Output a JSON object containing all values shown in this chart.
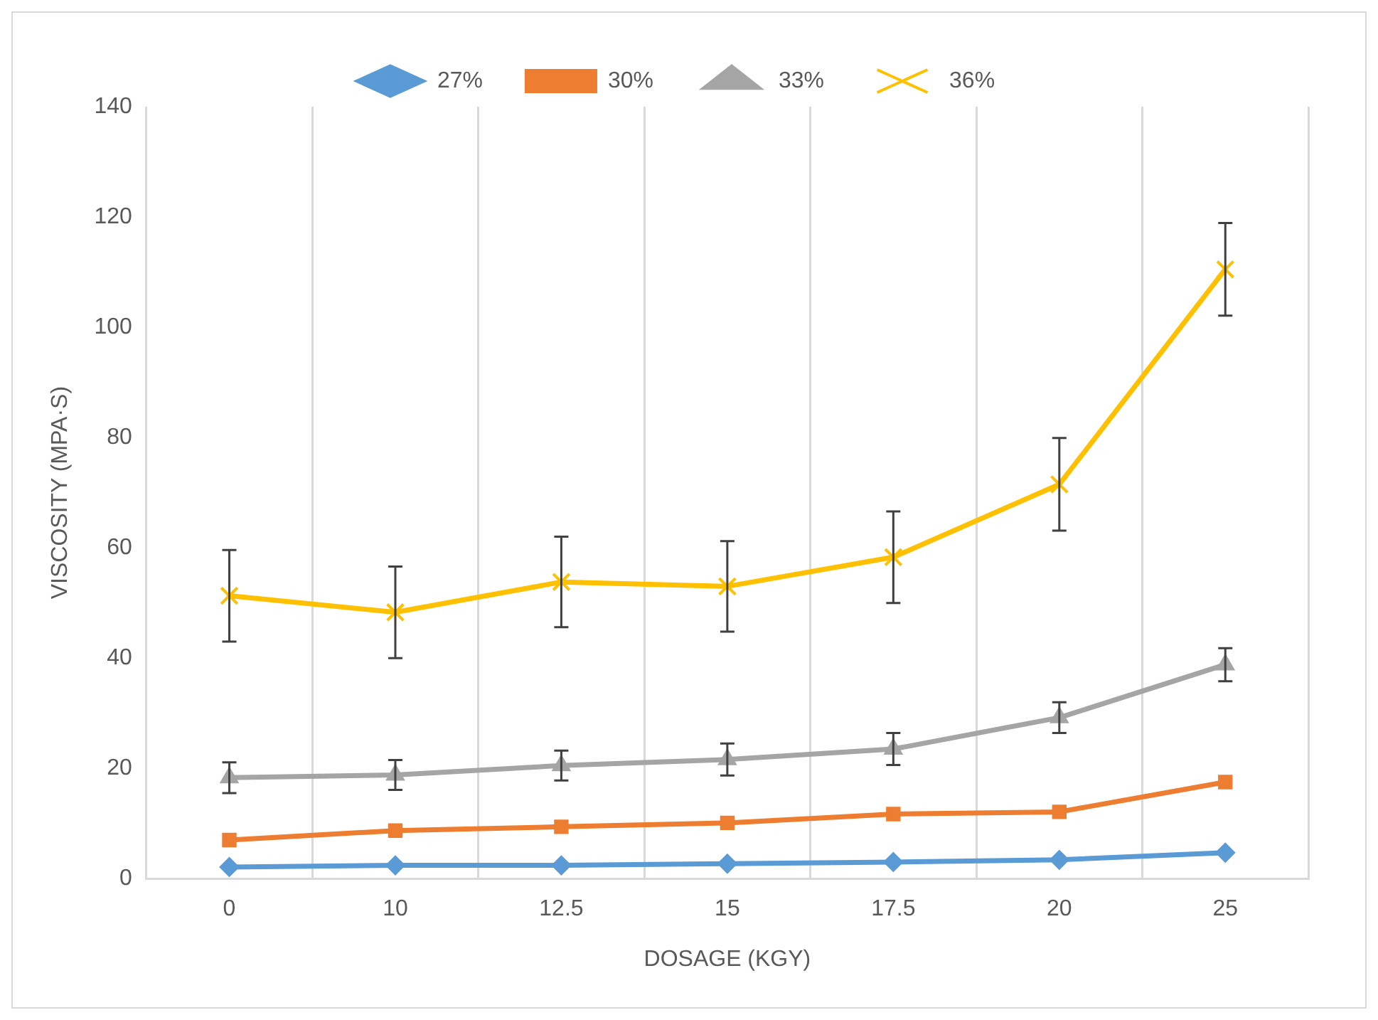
{
  "chart_data": {
    "type": "line",
    "xlabel": "DOSAGE (KGY)",
    "ylabel": "VISCOSITY (MPA·S)",
    "categories": [
      "0",
      "10",
      "12.5",
      "15",
      "17.5",
      "20",
      "25"
    ],
    "series": [
      {
        "name": "27%",
        "color": "#5b9bd5",
        "marker": "diamond",
        "values": [
          2.1,
          2.4,
          2.4,
          2.7,
          3.0,
          3.4,
          4.7
        ]
      },
      {
        "name": "30%",
        "color": "#ed7d31",
        "marker": "square",
        "values": [
          7.0,
          8.7,
          9.4,
          10.1,
          11.7,
          12.1,
          17.5
        ]
      },
      {
        "name": "33%",
        "color": "#a5a5a5",
        "marker": "triangle",
        "values": [
          18.3,
          18.8,
          20.5,
          21.6,
          23.5,
          29.2,
          38.8
        ],
        "errors": [
          2.8,
          2.7,
          2.7,
          2.9,
          2.9,
          2.8,
          3.0
        ]
      },
      {
        "name": "36%",
        "color": "#ffc000",
        "marker": "cross",
        "values": [
          51.3,
          48.3,
          53.8,
          53.0,
          58.3,
          71.5,
          110.5
        ],
        "errors": [
          8.3,
          8.3,
          8.2,
          8.2,
          8.3,
          8.4,
          8.4
        ]
      }
    ],
    "ylim": [
      0,
      140
    ],
    "yticks": [
      0,
      20,
      40,
      60,
      80,
      100,
      120,
      140
    ],
    "grid": "x",
    "legend": "top"
  }
}
